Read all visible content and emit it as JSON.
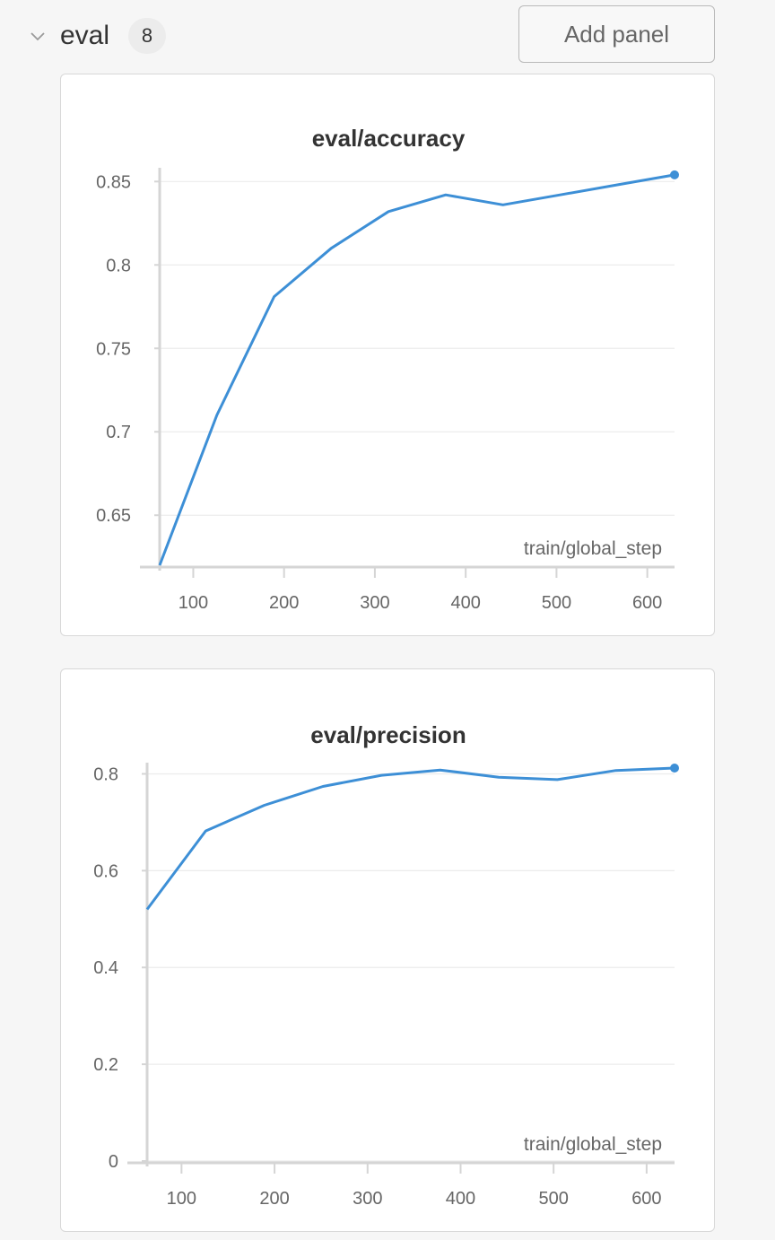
{
  "section": {
    "title": "eval",
    "count": "8",
    "add_panel_label": "Add panel"
  },
  "colors": {
    "line": "#3d8fd6",
    "grid": "#ececec",
    "axis": "#d5d5d5"
  },
  "chart_data": [
    {
      "type": "line",
      "title": "eval/accuracy",
      "xlabel": "train/global_step",
      "ylabel": "",
      "x": [
        63,
        126,
        189,
        252,
        315,
        378,
        441,
        504,
        567,
        630
      ],
      "series": [
        {
          "values": [
            0.62,
            0.71,
            0.781,
            0.81,
            0.832,
            0.842,
            0.836,
            0.842,
            0.848,
            0.854
          ]
        }
      ],
      "xticks": [
        100,
        200,
        300,
        400,
        500,
        600
      ],
      "yticks": [
        0.65,
        0.7,
        0.75,
        0.8,
        0.85
      ],
      "ytick_labels": [
        "0.65",
        "0.7",
        "0.75",
        "0.8",
        "0.85"
      ],
      "xlim": [
        63,
        630
      ],
      "ylim": [
        0.62,
        0.855
      ],
      "grid": true
    },
    {
      "type": "line",
      "title": "eval/precision",
      "xlabel": "train/global_step",
      "ylabel": "",
      "x": [
        63,
        126,
        189,
        252,
        315,
        378,
        441,
        504,
        567,
        630
      ],
      "series": [
        {
          "values": [
            0.52,
            0.682,
            0.735,
            0.774,
            0.797,
            0.808,
            0.793,
            0.788,
            0.807,
            0.812
          ]
        }
      ],
      "xticks": [
        100,
        200,
        300,
        400,
        500,
        600
      ],
      "yticks": [
        0,
        0.2,
        0.4,
        0.6,
        0.8
      ],
      "ytick_labels": [
        "0",
        "0.2",
        "0.4",
        "0.6",
        "0.8"
      ],
      "xlim": [
        63,
        630
      ],
      "ylim": [
        0,
        0.812
      ],
      "grid": true
    }
  ]
}
